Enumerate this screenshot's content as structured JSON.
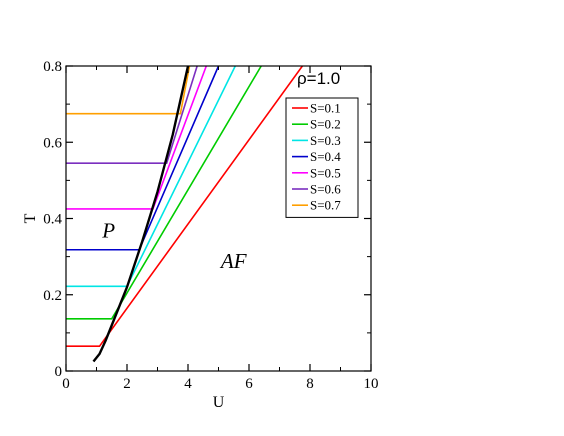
{
  "chart_data": {
    "type": "line",
    "title": "",
    "annotation": "ρ=1.0",
    "xlabel": "U",
    "ylabel": "T",
    "xlim": [
      0,
      10
    ],
    "ylim": [
      0,
      0.8
    ],
    "xticks": [
      0,
      2,
      4,
      6,
      8,
      10
    ],
    "xtick_labels": [
      "0",
      "2",
      "4",
      "6",
      "8",
      "10"
    ],
    "yticks": [
      0,
      0.2,
      0.4,
      0.6,
      0.8
    ],
    "ytick_labels": [
      "0",
      "0.2",
      "0.4",
      "0.6",
      "0.8"
    ],
    "grid": false,
    "legend_position": "top-right",
    "regions": [
      {
        "label": "P",
        "x": 1.4,
        "y": 0.35
      },
      {
        "label": "AF",
        "x": 5.5,
        "y": 0.27
      }
    ],
    "series": [
      {
        "name": "S=0.1",
        "color": "#ff0000",
        "x": [
          0,
          1.1,
          7.75
        ],
        "y": [
          0.065,
          0.065,
          0.8
        ]
      },
      {
        "name": "S=0.2",
        "color": "#00cc00",
        "x": [
          0,
          1.5,
          6.4
        ],
        "y": [
          0.137,
          0.137,
          0.8
        ]
      },
      {
        "name": "S=0.3",
        "color": "#00e5e5",
        "x": [
          0,
          2.0,
          5.55
        ],
        "y": [
          0.222,
          0.222,
          0.8
        ]
      },
      {
        "name": "S=0.4",
        "color": "#0000cc",
        "x": [
          0,
          2.4,
          5.0
        ],
        "y": [
          0.318,
          0.318,
          0.8
        ]
      },
      {
        "name": "S=0.5",
        "color": "#ff00ff",
        "x": [
          0,
          2.85,
          4.6
        ],
        "y": [
          0.425,
          0.425,
          0.8
        ]
      },
      {
        "name": "S=0.6",
        "color": "#7b2fbf",
        "x": [
          0,
          3.3,
          4.3
        ],
        "y": [
          0.545,
          0.545,
          0.8
        ]
      },
      {
        "name": "S=0.7",
        "color": "#ff9f00",
        "x": [
          0,
          3.75,
          4.05
        ],
        "y": [
          0.675,
          0.675,
          0.8
        ]
      }
    ],
    "boundary": {
      "color": "#000000",
      "x": [
        0.9,
        1.1,
        1.3,
        1.6,
        2.0,
        2.5,
        3.0,
        3.5,
        4.0
      ],
      "y": [
        0.025,
        0.045,
        0.08,
        0.14,
        0.22,
        0.34,
        0.47,
        0.62,
        0.8
      ]
    }
  }
}
